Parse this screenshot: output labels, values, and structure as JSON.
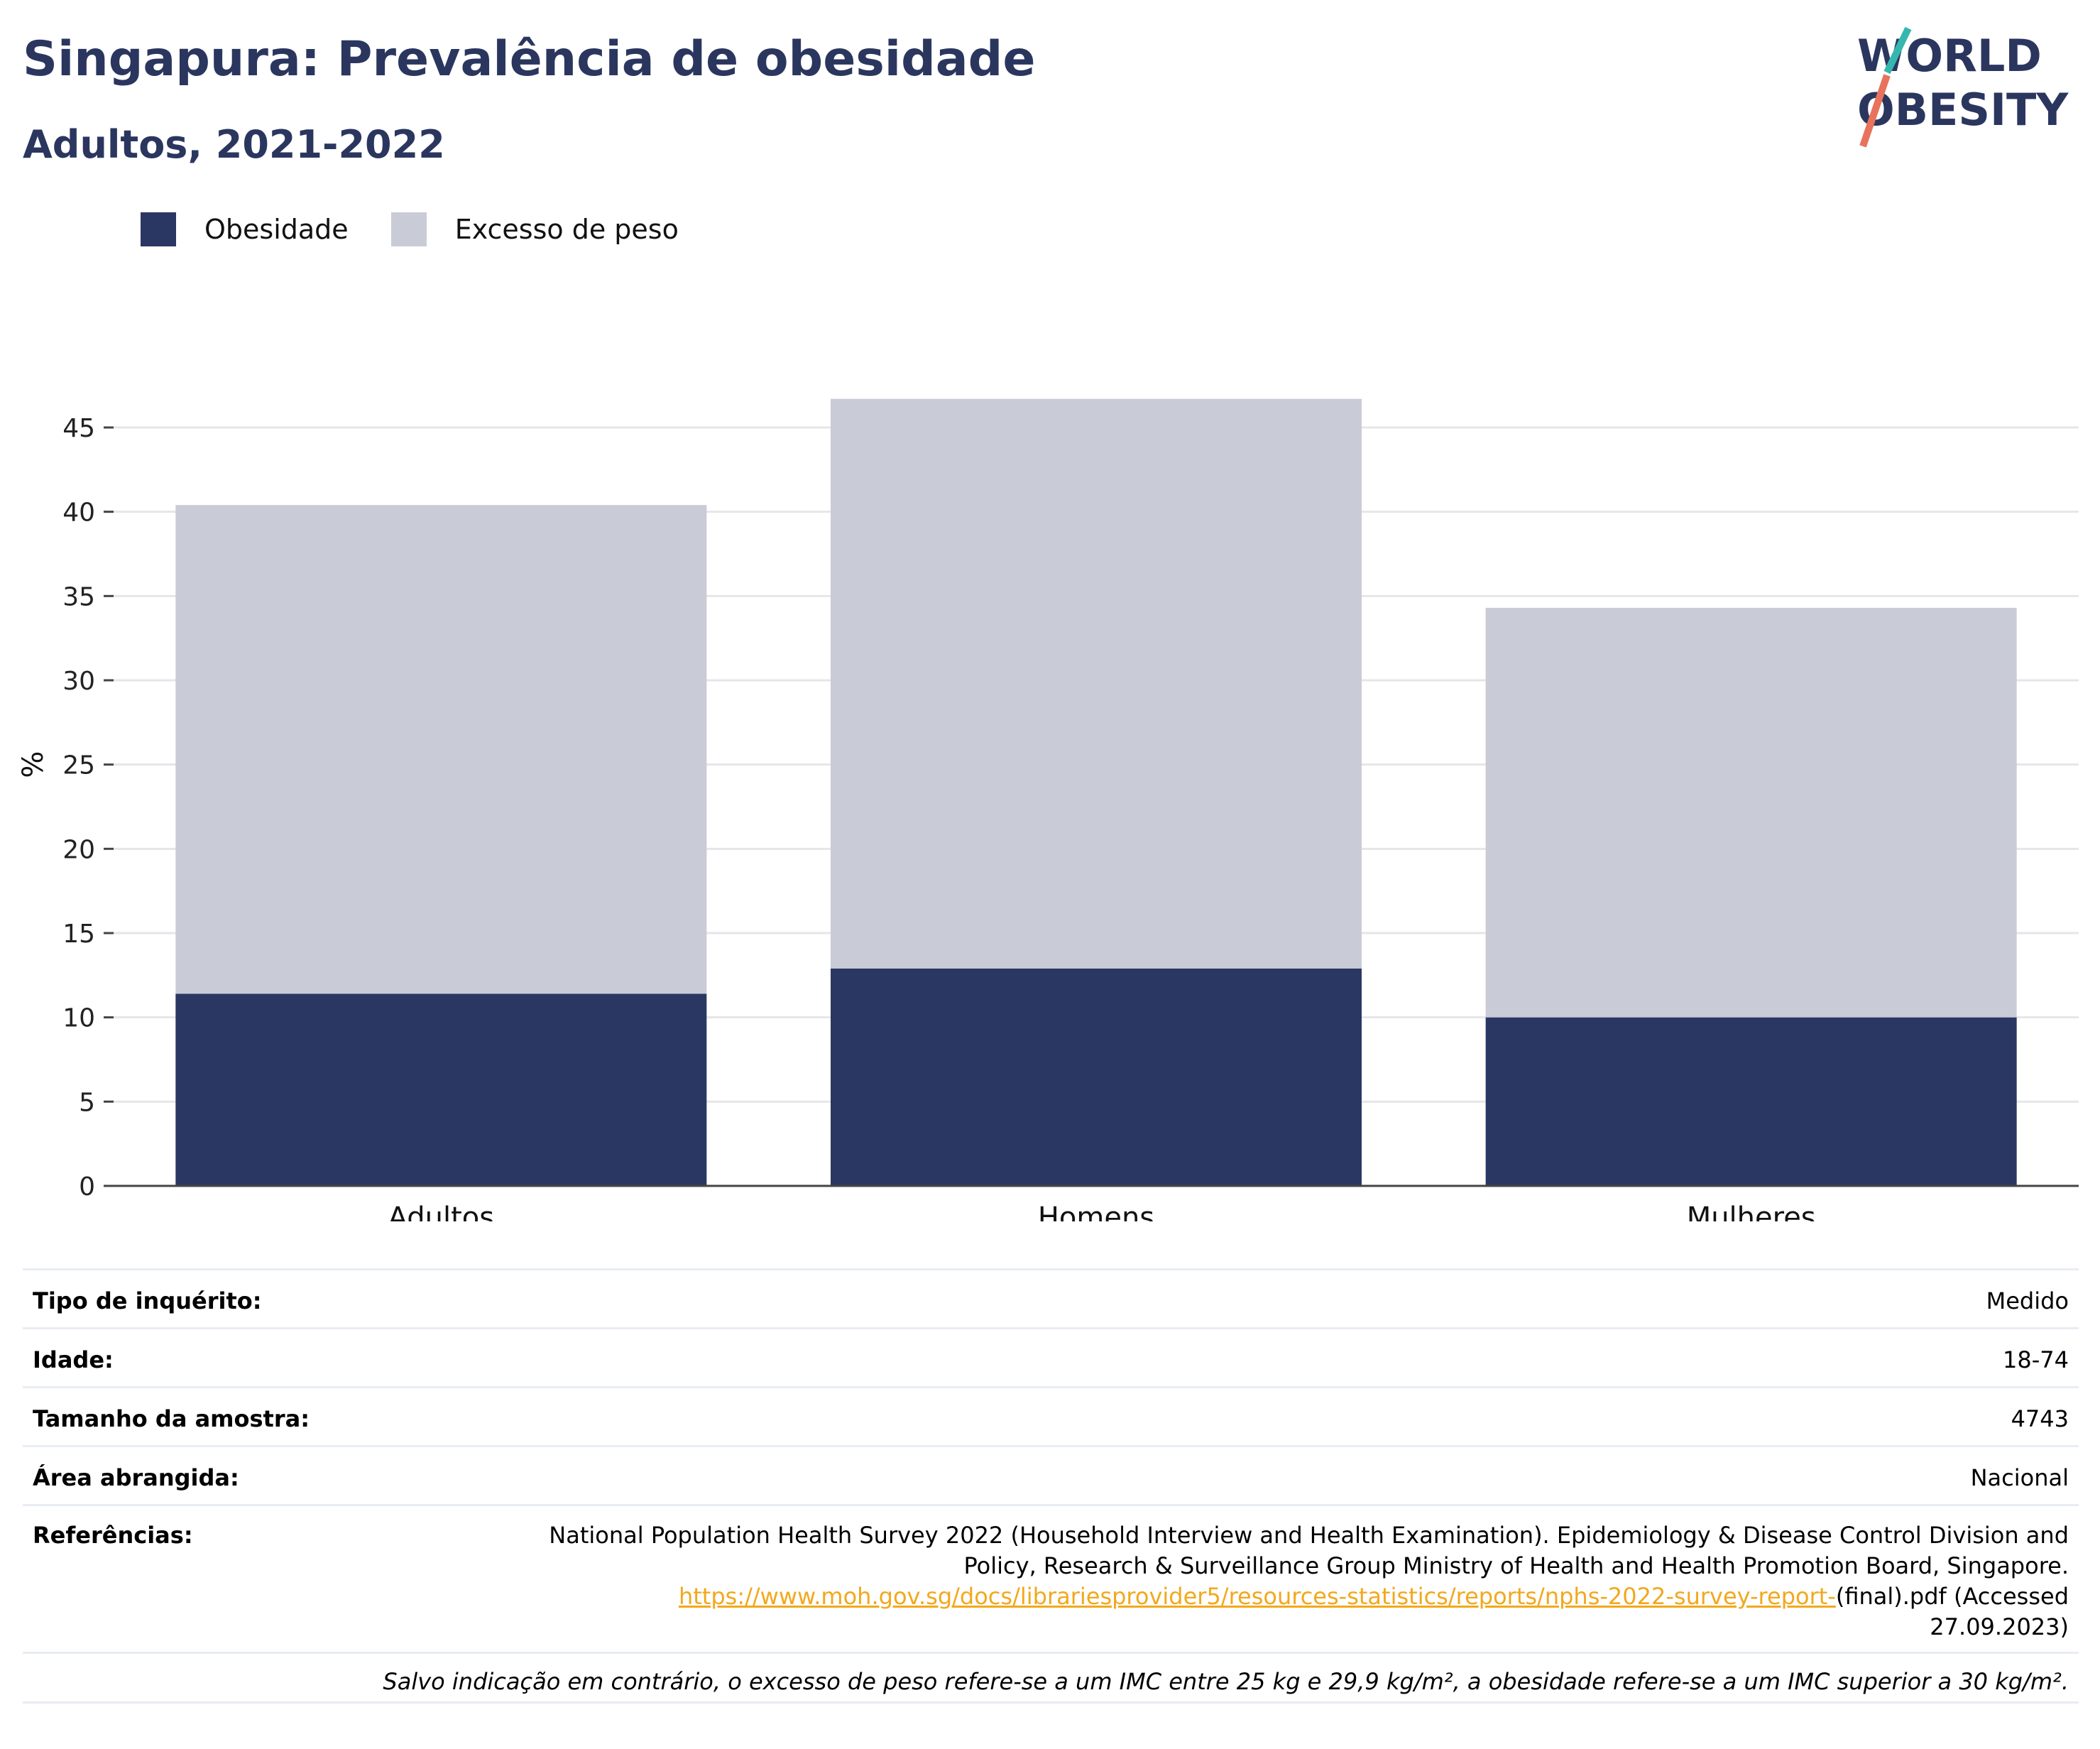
{
  "header": {
    "title": "Singapura: Prevalência de obesidade",
    "subtitle": "Adultos, 2021-2022"
  },
  "logo": {
    "line1": "WORLD",
    "line2": "OBESITY"
  },
  "colors": {
    "obesity": "#2b3763",
    "overweight": "#c9cbd6",
    "title": "#2b365f",
    "link": "#f2a81d",
    "logo_teal": "#35b7b0",
    "logo_coral": "#e8735c"
  },
  "chart_data": {
    "type": "bar",
    "stacked": true,
    "categories": [
      "Adultos",
      "Homens",
      "Mulheres"
    ],
    "series": [
      {
        "name": "Obesidade",
        "values": [
          11.4,
          12.9,
          10.0
        ]
      },
      {
        "name": "Excesso de peso",
        "values": [
          29.0,
          33.8,
          24.3
        ]
      }
    ],
    "ylabel": "%",
    "ylim": [
      0,
      47
    ],
    "yticks": [
      0,
      5,
      10,
      15,
      20,
      25,
      30,
      35,
      40,
      45
    ],
    "grid": true,
    "legend_position": "top-left"
  },
  "info": {
    "survey_type": {
      "label": "Tipo de inquérito:",
      "value": "Medido"
    },
    "age": {
      "label": "Idade:",
      "value": "18-74"
    },
    "sample_size": {
      "label": "Tamanho da amostra:",
      "value": "4743"
    },
    "area": {
      "label": "Área abrangida:",
      "value": "Nacional"
    },
    "references": {
      "label": "Referências:",
      "line1": "National Population Health Survey 2022 (Household Interview and Health Examination). Epidemiology & Disease Control Division and",
      "line2": "Policy, Research & Surveillance Group Ministry of Health and Health Promotion Board, Singapore.",
      "link": "https://www.moh.gov.sg/docs/librariesprovider5/resources-statistics/reports/nphs-2022-survey-report-",
      "after_link": "(final).pdf (Accessed",
      "line4": "27.09.2023)"
    },
    "note": "Salvo indicação em contrário, o excesso de peso refere-se a um IMC entre 25 kg e 29,9 kg/m², a obesidade refere-se a um IMC superior a 30 kg/m²."
  }
}
